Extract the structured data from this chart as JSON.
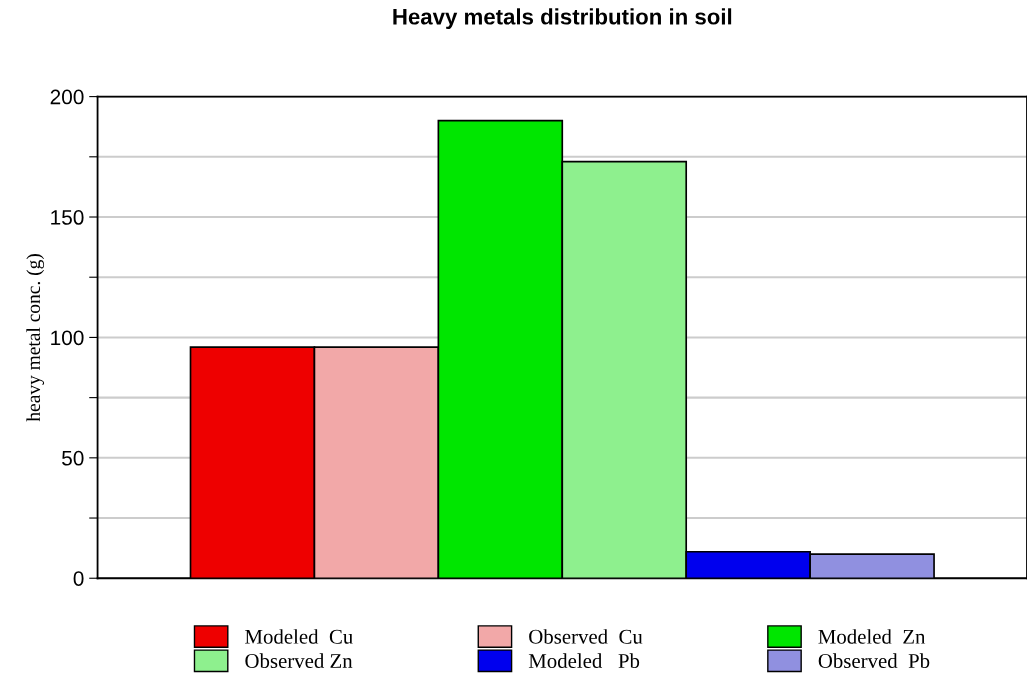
{
  "chart_data": {
    "type": "bar",
    "title": "Heavy metals distribution in soil",
    "ylabel": "heavy metal conc. (g)",
    "categories": [
      null
    ],
    "series": [
      {
        "name": "Modeled  Cu",
        "color": "#ee0000",
        "values": [
          96
        ]
      },
      {
        "name": "Observed  Cu",
        "color": "#f2a8a8",
        "values": [
          96
        ]
      },
      {
        "name": "Modeled  Zn",
        "color": "#00e600",
        "values": [
          190
        ]
      },
      {
        "name": "Observed Zn",
        "color": "#8ef08e",
        "values": [
          173
        ]
      },
      {
        "name": "Modeled   Pb",
        "color": "#0000ee",
        "values": [
          11
        ]
      },
      {
        "name": "Observed  Pb",
        "color": "#9090e0",
        "values": [
          10
        ]
      }
    ],
    "ylim": [
      0,
      200
    ],
    "yticks": [
      0,
      {
        "value": 25,
        "label": null
      },
      50,
      {
        "value": 75,
        "label": null
      },
      100,
      {
        "value": 125,
        "label": null
      },
      150,
      {
        "value": 175,
        "label": null
      },
      200
    ],
    "grid": "y",
    "legend": "bottom"
  }
}
